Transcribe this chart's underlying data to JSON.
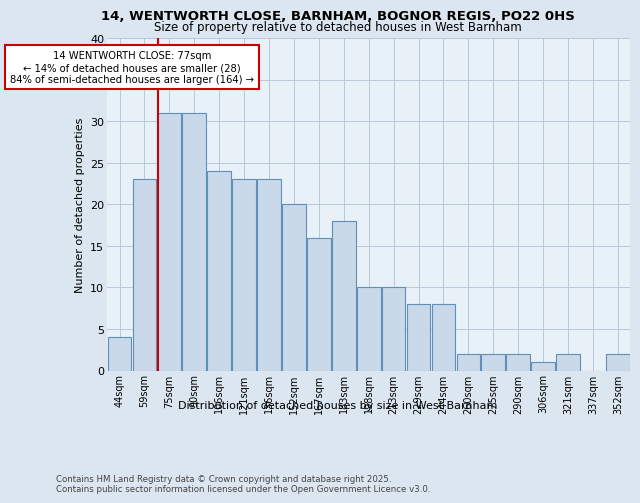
{
  "title1": "14, WENTWORTH CLOSE, BARNHAM, BOGNOR REGIS, PO22 0HS",
  "title2": "Size of property relative to detached houses in West Barnham",
  "xlabel": "Distribution of detached houses by size in West Barnham",
  "ylabel": "Number of detached properties",
  "categories": [
    "44sqm",
    "59sqm",
    "75sqm",
    "90sqm",
    "106sqm",
    "121sqm",
    "136sqm",
    "152sqm",
    "167sqm",
    "183sqm",
    "198sqm",
    "213sqm",
    "229sqm",
    "244sqm",
    "260sqm",
    "275sqm",
    "290sqm",
    "306sqm",
    "321sqm",
    "337sqm",
    "352sqm"
  ],
  "values": [
    4,
    23,
    31,
    31,
    24,
    23,
    23,
    20,
    16,
    18,
    10,
    10,
    8,
    8,
    2,
    2,
    2,
    1,
    2,
    0,
    2
  ],
  "bar_color": "#c9d9ea",
  "bar_edge_color": "#6090b8",
  "annotation_text": "14 WENTWORTH CLOSE: 77sqm\n← 14% of detached houses are smaller (28)\n84% of semi-detached houses are larger (164) →",
  "ylim": [
    0,
    40
  ],
  "yticks": [
    0,
    5,
    10,
    15,
    20,
    25,
    30,
    35,
    40
  ],
  "footer_text": "Contains HM Land Registry data © Crown copyright and database right 2025.\nContains public sector information licensed under the Open Government Licence v3.0.",
  "bg_color": "#dce6f0",
  "plot_bg_color": "#e8f0f8",
  "grid_color": "#b8c8da"
}
